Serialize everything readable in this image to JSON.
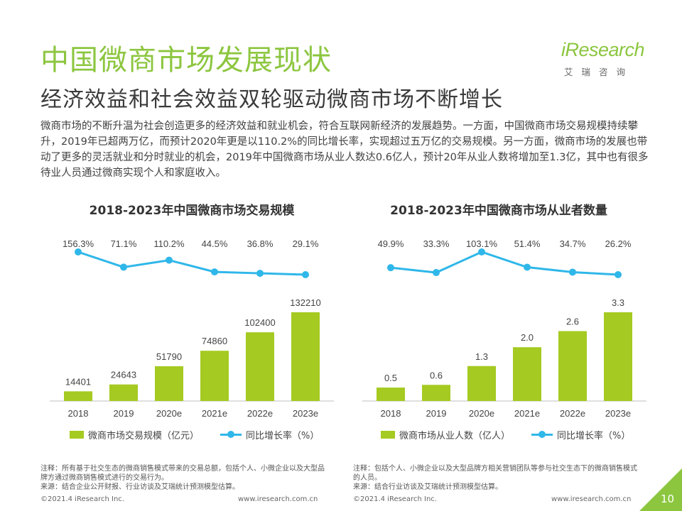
{
  "header": {
    "title": "中国微商市场发展现状",
    "subtitle": "经济效益和社会效益双轮驱动微商市场不断增长",
    "body": "微商市场的不断升温为社会创造更多的经济效益和就业机会，符合互联网新经济的发展趋势。一方面，中国微商市场交易规模持续攀升，2019年已超两万亿，而预计2020年更是以110.2%的同比增长率，实现超过五万亿的交易规模。另一方面，微商市场的发展也带动了更多的灵活就业和分时就业的机会，2019年中国微商市场从业人数达0.6亿人，预计20年从业人数将增加至1.3亿，其中也有很多待业人员通过微商实现个人和家庭收入。"
  },
  "logo": {
    "main": "iResearch",
    "sub": "艾瑞咨询"
  },
  "colors": {
    "title_green": "#8cc63f",
    "bar": "#a5ca21",
    "line": "#2fb7e9",
    "page_badge": "#8cc63f"
  },
  "chart_data": [
    {
      "type": "bar",
      "title": "2018-2023年中国微商市场交易规模",
      "categories": [
        "2018",
        "2019",
        "2020e",
        "2021e",
        "2022e",
        "2023e"
      ],
      "series": [
        {
          "name": "微商市场交易规模（亿元）",
          "type": "bar",
          "values": [
            14401,
            24643,
            51790,
            74860,
            102400,
            132210
          ],
          "labels": [
            "14401",
            "24643",
            "51790",
            "74860",
            "102400",
            "132210"
          ]
        },
        {
          "name": "同比增长率（%）",
          "type": "line",
          "values": [
            156.3,
            71.1,
            110.2,
            44.5,
            36.8,
            29.1
          ],
          "labels": [
            "156.3%",
            "71.1%",
            "110.2%",
            "44.5%",
            "36.8%",
            "29.1%"
          ]
        }
      ],
      "legend": "bottom"
    },
    {
      "type": "bar",
      "title": "2018-2023年中国微商市场从业者数量",
      "categories": [
        "2018",
        "2019",
        "2020e",
        "2021e",
        "2022e",
        "2023e"
      ],
      "series": [
        {
          "name": "微商市场从业人数（亿人）",
          "type": "bar",
          "values": [
            0.5,
            0.6,
            1.3,
            2.0,
            2.6,
            3.3
          ],
          "labels": [
            "0.5",
            "0.6",
            "1.3",
            "2.0",
            "2.6",
            "3.3"
          ]
        },
        {
          "name": "同比增长率（%）",
          "type": "line",
          "values": [
            49.9,
            33.3,
            103.1,
            51.4,
            34.7,
            26.2
          ],
          "labels": [
            "49.9%",
            "33.3%",
            "103.1%",
            "51.4%",
            "34.7%",
            "26.2%"
          ]
        }
      ],
      "legend": "bottom"
    }
  ],
  "notes": {
    "left": "注释：所有基于社交生态的微商销售模式带来的交易总额，包括个人、小微企业以及大型品牌方通过微商销售模式进行的交易行为。\n来源：结合企业公开财报、行业访谈及艾瑞统计预测模型估算。",
    "right": "注释：包括个人、小微企业以及大型品牌方相关营销团队等参与社交生态下的微商销售模式的人员。\n来源：结合行业访谈及艾瑞统计预测模型估算。"
  },
  "footer": {
    "copyright_left": "©2021.4 iResearch Inc.",
    "url_left": "www.iresearch.com.cn",
    "copyright_right": "©2021.4 iResearch Inc.",
    "url_right": "www.iresearch.com.cn",
    "page_number": "10"
  }
}
